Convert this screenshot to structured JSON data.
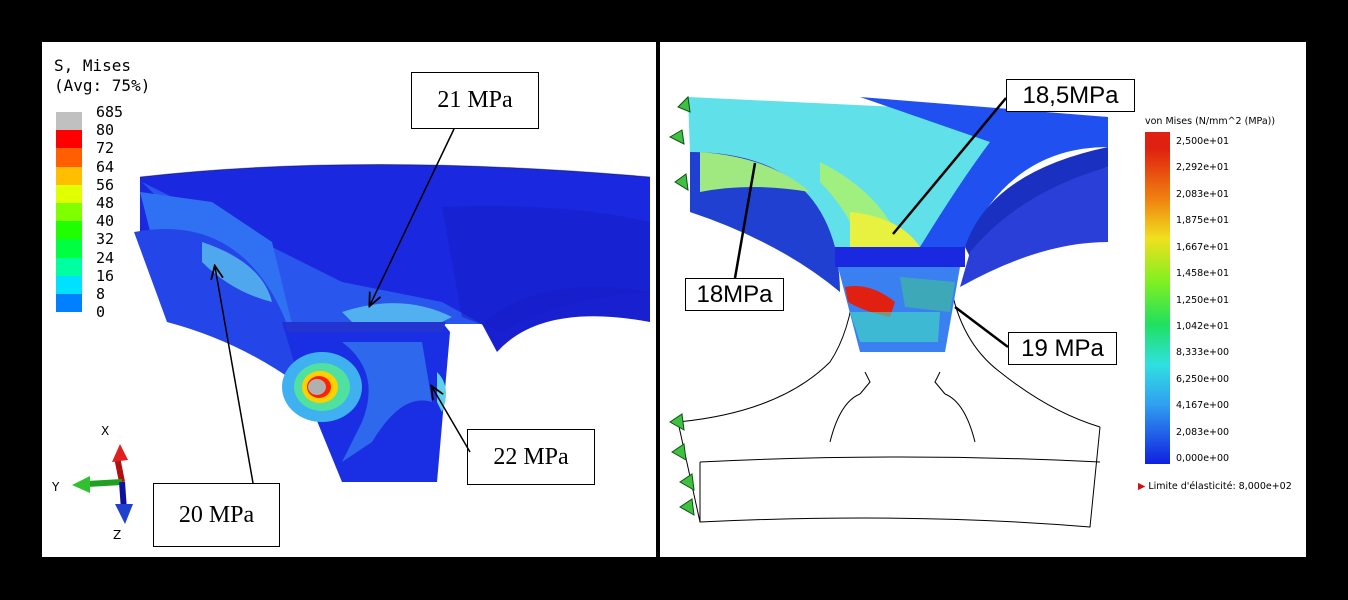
{
  "left": {
    "legend": {
      "title_line1": "S, Mises",
      "title_line2": "(Avg: 75%)",
      "labels": [
        "685",
        "80",
        "72",
        "64",
        "56",
        "48",
        "40",
        "32",
        "24",
        "16",
        "8",
        "0"
      ],
      "colors": [
        "#c0c0c0",
        "#ff0000",
        "#ff5f00",
        "#ffbe00",
        "#e0ff00",
        "#80ff00",
        "#20ff00",
        "#00ff40",
        "#00ffa0",
        "#00e0ff",
        "#0080ff",
        "#0000ff"
      ]
    },
    "callouts": {
      "top": "21 MPa",
      "right": "22 MPa",
      "bottom": "20 MPa"
    },
    "axes": {
      "x": "X",
      "y": "Y",
      "z": "Z"
    }
  },
  "right": {
    "legend": {
      "title": "von Mises (N/mm^2 (MPa))",
      "labels": [
        "2,500e+01",
        "2,292e+01",
        "2,083e+01",
        "1,875e+01",
        "1,667e+01",
        "1,458e+01",
        "1,250e+01",
        "1,042e+01",
        "8,333e+00",
        "6,250e+00",
        "4,167e+00",
        "2,083e+00",
        "0,000e+00"
      ],
      "yield_label": "Limite d'élasticité: 8,000e+02"
    },
    "callouts": {
      "top": "18,5MPa",
      "left": "18MPa",
      "right": "19 MPa"
    }
  }
}
